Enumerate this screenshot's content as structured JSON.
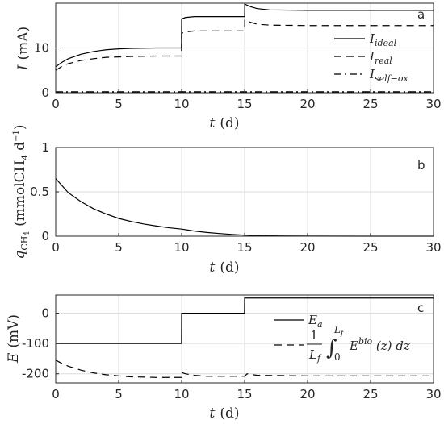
{
  "chart_data": [
    {
      "panel": "a",
      "type": "line",
      "xlabel": "t (d)",
      "ylabel": "I (mA)",
      "xlim": [
        0,
        30
      ],
      "ylim": [
        0,
        20
      ],
      "xticks": [
        0,
        5,
        10,
        15,
        20,
        25,
        30
      ],
      "yticks": [
        0,
        10
      ],
      "grid": true,
      "legend_position": "right",
      "series": [
        {
          "name": "I_ideal",
          "style": "solid",
          "x": [
            0,
            0.5,
            1,
            2,
            3,
            4,
            5,
            6,
            8,
            9.99,
            10,
            10.3,
            11,
            12,
            15,
            15.01,
            15.5,
            16,
            17,
            20,
            25,
            30
          ],
          "y": [
            5.8,
            6.8,
            7.6,
            8.6,
            9.2,
            9.6,
            9.8,
            9.9,
            10.0,
            10.0,
            16.5,
            16.8,
            17.0,
            17.0,
            17.0,
            19.8,
            19.2,
            18.8,
            18.5,
            18.4,
            18.4,
            18.4
          ]
        },
        {
          "name": "I_real",
          "style": "dashed",
          "x": [
            0,
            0.5,
            1,
            2,
            3,
            4,
            5,
            6,
            8,
            9.99,
            10,
            10.3,
            11,
            12,
            15,
            15.01,
            15.5,
            16,
            17,
            20,
            25,
            30
          ],
          "y": [
            5.0,
            5.9,
            6.5,
            7.2,
            7.6,
            7.9,
            8.0,
            8.1,
            8.2,
            8.2,
            13.3,
            13.6,
            13.8,
            13.8,
            13.8,
            16.2,
            15.7,
            15.3,
            15.1,
            15.0,
            15.0,
            15.0
          ]
        },
        {
          "name": "I_self-ox",
          "style": "dashdot",
          "x": [
            0,
            30
          ],
          "y": [
            0.2,
            0.2
          ]
        }
      ],
      "legend_labels": [
        {
          "main": "I",
          "sub": "ideal"
        },
        {
          "main": "I",
          "sub": "real"
        },
        {
          "main": "I",
          "sub": "self−ox"
        }
      ]
    },
    {
      "panel": "b",
      "type": "line",
      "xlabel": "t (d)",
      "ylabel": "q_CH4 (mmolCH4 d⁻¹)",
      "xlim": [
        0,
        30
      ],
      "ylim": [
        0,
        1
      ],
      "xticks": [
        0,
        5,
        10,
        15,
        20,
        25,
        30
      ],
      "yticks": [
        0,
        0.5,
        1
      ],
      "grid": true,
      "series": [
        {
          "name": "",
          "style": "solid",
          "x": [
            0,
            1,
            2,
            3,
            4,
            5,
            6,
            7,
            8,
            9,
            10,
            11,
            12,
            13,
            14,
            15,
            16,
            17,
            18,
            20,
            25,
            30
          ],
          "y": [
            0.65,
            0.49,
            0.39,
            0.31,
            0.25,
            0.2,
            0.165,
            0.137,
            0.115,
            0.095,
            0.08,
            0.058,
            0.042,
            0.03,
            0.02,
            0.012,
            0.007,
            0.004,
            0.002,
            0.001,
            0.0,
            0.0
          ]
        }
      ]
    },
    {
      "panel": "c",
      "type": "line",
      "xlabel": "t (d)",
      "ylabel": "E (mV)",
      "xlim": [
        0,
        30
      ],
      "ylim": [
        -230,
        60
      ],
      "xticks": [
        0,
        5,
        10,
        15,
        20,
        25,
        30
      ],
      "yticks": [
        -200,
        -100,
        0
      ],
      "grid": true,
      "legend_position": "right",
      "series": [
        {
          "name": "E_a",
          "style": "solid",
          "x": [
            0,
            9.99,
            10,
            14.99,
            15,
            30
          ],
          "y": [
            -100,
            -100,
            0,
            0,
            50,
            50
          ]
        },
        {
          "name": "(1/L_f) ∫_0^{L_f} E^bio(z) dz",
          "style": "dashed",
          "x": [
            0,
            0.5,
            1,
            2,
            3,
            4,
            5,
            6,
            8,
            9.99,
            10,
            10.3,
            11,
            12,
            15,
            15.2,
            16,
            20,
            25,
            30
          ],
          "y": [
            -155,
            -166,
            -175,
            -188,
            -197,
            -203,
            -207,
            -210,
            -212,
            -212,
            -196,
            -200,
            -205,
            -208,
            -208,
            -200,
            -205,
            -207,
            -207,
            -207
          ]
        }
      ],
      "legend_labels": [
        {
          "main": "E",
          "sub": "a"
        },
        {
          "main": "integral"
        }
      ]
    }
  ],
  "panel_letters": [
    "a",
    "b",
    "c"
  ],
  "tick_labels": {
    "x": [
      "0",
      "5",
      "10",
      "15",
      "20",
      "25",
      "30"
    ],
    "a_y": [
      "0",
      "10"
    ],
    "b_y": [
      "0",
      "0.5",
      "1"
    ],
    "c_y": [
      "-200",
      "-100",
      "0"
    ]
  },
  "axis_labels": {
    "a_x_var": "t",
    "a_x_unit": "(d)",
    "a_y_var": "I",
    "a_y_unit": "(mA)",
    "b_x_var": "t",
    "b_x_unit": "(d)",
    "b_y_var": "q",
    "b_y_sub": "CH",
    "b_y_sub4": "4",
    "b_y_unit_open": "(mmolCH",
    "b_y_unit_4": "4",
    "b_y_unit_d": " d",
    "b_y_unit_exp": "−1",
    "b_y_unit_close": ")",
    "c_x_var": "t",
    "c_x_unit": "(d)",
    "c_y_var": "E",
    "c_y_unit": "(mV)"
  },
  "legend_text": {
    "a_ideal_main": "I",
    "a_ideal_sub": "ideal",
    "a_real_main": "I",
    "a_real_sub": "real",
    "a_selfox_main": "I",
    "a_selfox_sub": "self−ox",
    "c_ea_main": "E",
    "c_ea_sub": "a",
    "c_frac_num": "1",
    "c_frac_den": "L",
    "c_frac_den_sub": "f",
    "c_int_sym": "∫",
    "c_int_upper": "L",
    "c_int_upper_sub": "f",
    "c_int_lower": "0",
    "c_int_body": "E",
    "c_int_sup": "bio",
    "c_int_arg": " (z) dz"
  },
  "colors": {
    "line": "#000000",
    "grid": "#dcdcdc",
    "frame": "#262626"
  }
}
